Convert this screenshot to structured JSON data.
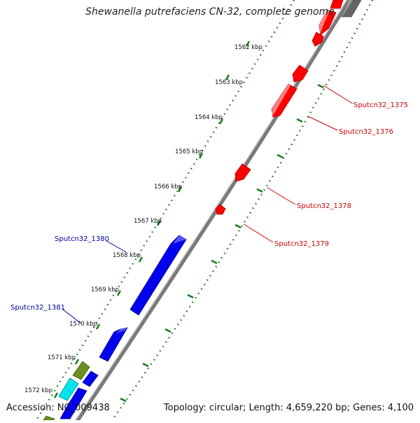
{
  "title": "Shewanella putrefaciens CN-32, complete genome",
  "footer": {
    "accession": "Accession: NC_009438",
    "summary": "Topology: circular; Length: 4,659,220 bp; Genes: 4,100"
  },
  "colors": {
    "backbone": "#7a7a7a",
    "tick": "#1a7a1a",
    "forward_gene": "#ff0000",
    "reverse_gene": "#0000ee",
    "forward_label": "#cc0000",
    "reverse_label": "#000099",
    "olive_gene": "#6b8e23",
    "cyan_gene": "#00e5ee",
    "gray_gene": "#666666"
  },
  "scale": {
    "tick_labels": [
      "1562 kbp",
      "1563 kbp",
      "1564 kbp",
      "1565 kbp",
      "1566 kbp",
      "1567 kbp",
      "1568 kbp",
      "1569 kbp",
      "1570 kbp",
      "1571 kbp",
      "1572 kbp"
    ]
  },
  "gene_labels": {
    "forward": [
      "Sputcn32_1375",
      "Sputcn32_1376",
      "Sputcn32_1378",
      "Sputcn32_1379"
    ],
    "reverse": [
      "Sputcn32_1380",
      "Sputcn32_1381"
    ]
  }
}
